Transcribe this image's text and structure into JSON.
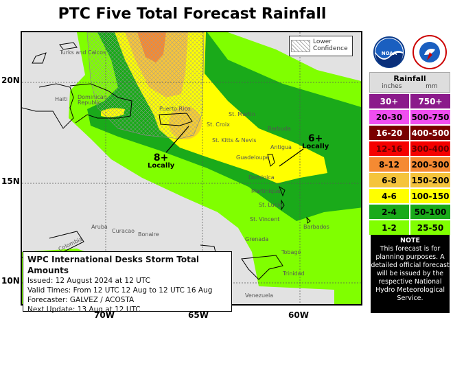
{
  "title": "PTC Five Total Forecast Rainfall",
  "map": {
    "lower_confidence": [
      "Lower",
      "Confidence"
    ],
    "lat_labels": [
      "20N",
      "15N",
      "10N"
    ],
    "lon_labels": [
      "70W",
      "65W",
      "60W"
    ],
    "places": [
      "Turks and Caicos",
      "Haiti",
      "Dominican Republic",
      "Puerto Rico",
      "St. Martin",
      "St. Croix",
      "Barbuda",
      "St. Kitts & Nevis",
      "Antigua",
      "Guadeloupe",
      "Dominica",
      "Martinique",
      "St. Lucia",
      "St. Vincent",
      "Barbados",
      "Grenada",
      "Aruba",
      "Curacao",
      "Bonaire",
      "Colombia",
      "Tobago",
      "Trinidad",
      "Venezuela"
    ],
    "annotations": [
      {
        "value": "8+",
        "text": "Locally"
      },
      {
        "value": "6+",
        "text": "Locally"
      }
    ]
  },
  "info": {
    "heading": "WPC International Desks Storm Total Amounts",
    "issued": "Issued:  12 August 2024 at 12 UTC",
    "valid": "Valid Times:  From 12 UTC 12 Aug  to  12 UTC 16 Aug",
    "forecaster": "Forecaster:  GALVEZ / ACOSTA",
    "next_update": "Next Update: 13 Aug at 12 UTC"
  },
  "legend": {
    "title": "Rainfall",
    "inches_label": "inches",
    "mm_label": "mm",
    "rows": [
      {
        "in": "30+",
        "mm": "750+",
        "color": "#8b1a8b",
        "text": "#fff"
      },
      {
        "in": "20-30",
        "mm": "500-750",
        "color": "#f04ef0",
        "text": "#000"
      },
      {
        "in": "16-20",
        "mm": "400-500",
        "color": "#7a0000",
        "text": "#fff"
      },
      {
        "in": "12-16",
        "mm": "300-400",
        "color": "#f50000",
        "text": "#600"
      },
      {
        "in": "8-12",
        "mm": "200-300",
        "color": "#f58a32",
        "text": "#000"
      },
      {
        "in": "6-8",
        "mm": "150-200",
        "color": "#f5c43c",
        "text": "#000"
      },
      {
        "in": "4-6",
        "mm": "100-150",
        "color": "#ffff00",
        "text": "#000"
      },
      {
        "in": "2-4",
        "mm": "50-100",
        "color": "#1aaa1a",
        "text": "#000"
      },
      {
        "in": "1-2",
        "mm": "25-50",
        "color": "#80ff00",
        "text": "#000"
      }
    ]
  },
  "note": {
    "heading": "NOTE",
    "text": "This forecast is for planning purposes. A detailed official forecast will be issued by the respective National Hydro Meteorological Service."
  },
  "logos": {
    "noaa": "NOAA",
    "nws": "NATIONAL WEATHER SERVICE"
  }
}
